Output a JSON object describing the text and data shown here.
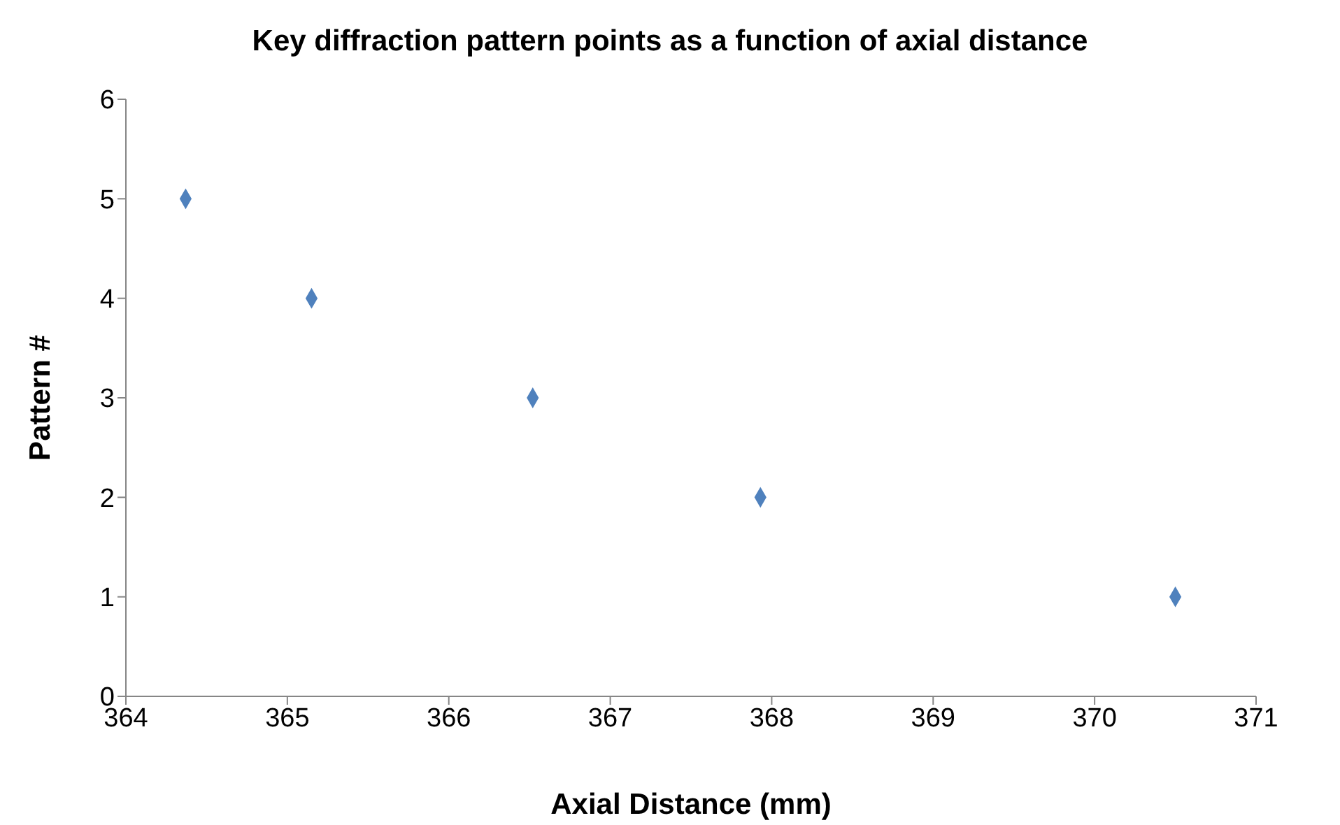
{
  "chart_data": {
    "type": "scatter",
    "title": "Key diffraction pattern points as a function of axial distance",
    "xlabel": "Axial Distance (mm)",
    "ylabel": "Pattern #",
    "x": [
      364.37,
      365.15,
      366.52,
      367.93,
      370.5
    ],
    "series": [
      {
        "color": "#4f81bd",
        "values": [
          5,
          4,
          3,
          2,
          1
        ]
      }
    ],
    "xlim": [
      364,
      371
    ],
    "xticks": [
      364,
      365,
      366,
      367,
      368,
      369,
      370,
      371
    ],
    "ylim": [
      0,
      6
    ],
    "yticks": [
      0,
      1,
      2,
      3,
      4,
      5,
      6
    ],
    "marker": "diamond",
    "grid": false,
    "legend": false
  }
}
